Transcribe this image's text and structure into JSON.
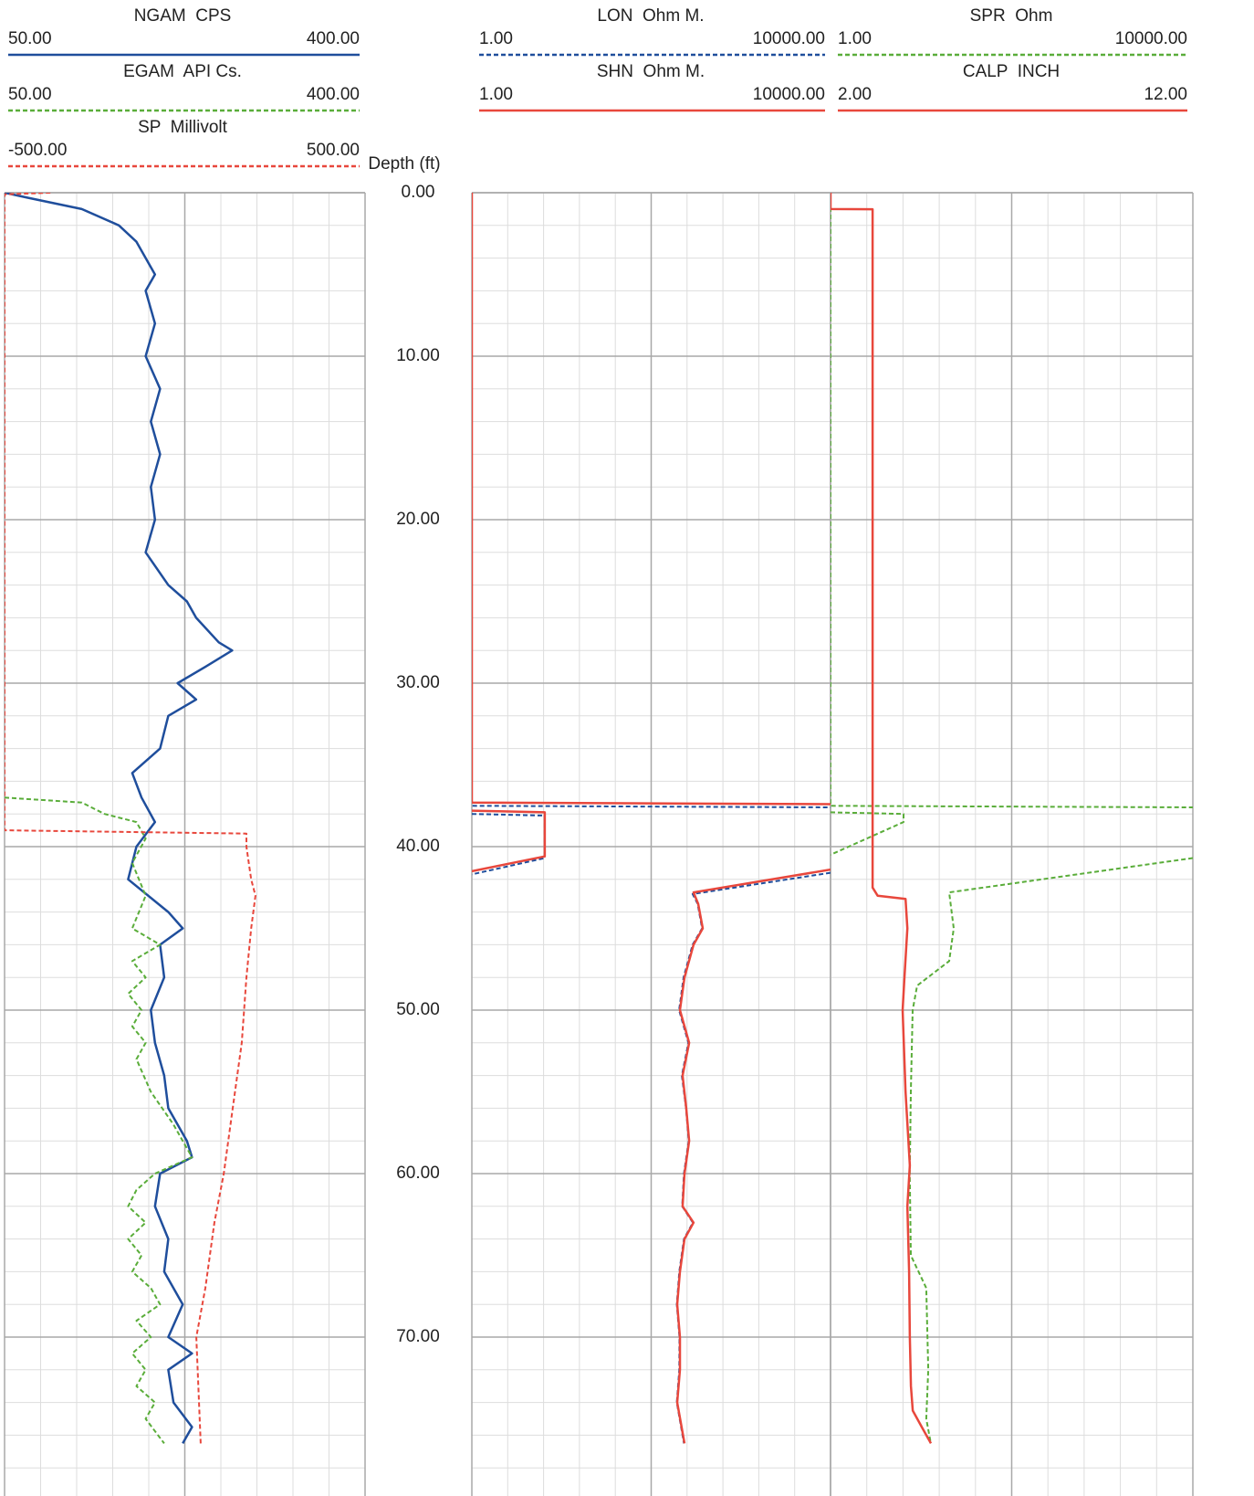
{
  "chart_data": {
    "type": "welllog",
    "ylabel": "Depth (ft)",
    "ylim": [
      0,
      80
    ],
    "yticks": [
      {
        "value": 0,
        "label": "0.00"
      },
      {
        "value": 10,
        "label": "10.00"
      },
      {
        "value": 20,
        "label": "20.00"
      },
      {
        "value": 30,
        "label": "30.00"
      },
      {
        "value": 40,
        "label": "40.00"
      },
      {
        "value": 50,
        "label": "50.00"
      },
      {
        "value": 60,
        "label": "60.00"
      },
      {
        "value": 70,
        "label": "70.00"
      }
    ],
    "tracks": [
      {
        "series": [
          {
            "name": "NGAM  CPS",
            "color": "#1f4e9c",
            "dash": false,
            "scale": "linear",
            "xlim": [
              {
                "value": 50,
                "label": "50.00"
              },
              {
                "value": 400,
                "label": "400.00"
              }
            ],
            "depth": [
              0,
              0.3,
              1,
              2,
              3,
              5,
              6,
              8,
              10,
              12,
              14,
              16,
              18,
              20,
              22,
              24,
              25,
              26,
              27.5,
              28,
              29,
              30,
              31,
              32,
              34,
              35.5,
              37,
              38.5,
              40,
              42,
              44,
              45,
              46,
              48,
              50,
              52,
              54,
              56,
              58,
              59,
              60,
              62,
              64,
              66,
              68,
              70,
              71,
              72,
              74,
              75.5,
              76.5
            ],
            "values": [
              50,
              72,
              125,
              161,
              178,
              196,
              187,
              196,
              187,
              201,
              192,
              201,
              192,
              196,
              187,
              209,
              227,
              236,
              258,
              271,
              245,
              218,
              236,
              209,
              201,
              174,
              183,
              196,
              178,
              170,
              209,
              223,
              201,
              205,
              192,
              196,
              205,
              209,
              227,
              232,
              201,
              196,
              209,
              205,
              223,
              209,
              232,
              209,
              214,
              232,
              223
            ]
          },
          {
            "name": "EGAM  API Cs.",
            "color": "#5aad3a",
            "dash": true,
            "scale": "linear",
            "xlim": [
              {
                "value": 50,
                "label": "50.00"
              },
              {
                "value": 400,
                "label": "400.00"
              }
            ],
            "depth": [
              37,
              37.3,
              38,
              38.5,
              39.5,
              41,
              43,
              45,
              46,
              47,
              48,
              49,
              50,
              51,
              52,
              53,
              55,
              57,
              58,
              59,
              60,
              61,
              62,
              63,
              64,
              65,
              66,
              67,
              68,
              69,
              70,
              71,
              72,
              73,
              74,
              75,
              76.5
            ],
            "values": [
              50,
              125,
              147,
              178,
              187,
              174,
              187,
              174,
              201,
              174,
              187,
              170,
              183,
              174,
              187,
              178,
              192,
              214,
              223,
              232,
              196,
              178,
              170,
              187,
              170,
              183,
              174,
              192,
              201,
              178,
              192,
              174,
              187,
              178,
              196,
              187,
              205
            ]
          },
          {
            "name": "SP  Millivolt",
            "color": "#e8473c",
            "dash": true,
            "scale": "linear",
            "xlim": [
              {
                "value": -500,
                "label": "-500.00"
              },
              {
                "value": 500,
                "label": "500.00"
              }
            ],
            "depth": [
              0,
              0.1,
              39,
              39.2,
              40,
              42,
              43,
              45,
              48,
              52,
              56,
              60,
              63,
              67,
              70,
              76.5
            ],
            "values": [
              -373,
              -500,
              -500,
              171,
              171,
              184,
              196,
              184,
              171,
              158,
              133,
              108,
              82,
              57,
              32,
              44
            ]
          }
        ]
      },
      {
        "series": [
          {
            "name": "LON  Ohm M.",
            "color": "#1f4e9c",
            "dash": true,
            "scale": "log",
            "xlim": [
              {
                "value": 1,
                "label": "1.00"
              },
              {
                "value": 10000,
                "label": "10000.00"
              }
            ],
            "depth": [
              0,
              37.5,
              37.6,
              37.7,
              38,
              38.1,
              40.7,
              41.7,
              41.8,
              41.6,
              42.9,
              43.5,
              45,
              46,
              48,
              50,
              52,
              54,
              56,
              58,
              60,
              62,
              63,
              64,
              66,
              68,
              70,
              72,
              74,
              76.5
            ],
            "values": [
              1,
              1,
              10000,
              null,
              1,
              6.5,
              6.5,
              1,
              null,
              10000,
              290,
              330,
              370,
              290,
              230,
              205,
              260,
              220,
              245,
              262,
              232,
              222,
              292,
              232,
              206,
              193,
              207,
              206,
              193,
              232
            ]
          },
          {
            "name": "SHN  Ohm M.",
            "color": "#e8473c",
            "dash": false,
            "scale": "log",
            "xlim": [
              {
                "value": 1,
                "label": "1.00"
              },
              {
                "value": 10000,
                "label": "10000.00"
              }
            ],
            "depth": [
              0,
              37.3,
              37.4,
              37.5,
              37.8,
              37.9,
              40.6,
              41.5,
              41.6,
              41.4,
              42.8,
              43.5,
              45,
              46,
              48,
              50,
              52,
              54,
              56,
              58,
              60,
              62,
              63,
              64,
              66,
              68,
              70,
              72,
              74,
              76.5
            ],
            "values": [
              1,
              1,
              10000,
              null,
              1,
              6.5,
              6.5,
              1,
              null,
              10000,
              297,
              334,
              376,
              297,
              235,
              209,
              265,
              224,
              246,
              265,
              235,
              224,
              297,
              235,
              209,
              195,
              209,
              209,
              195,
              235
            ]
          }
        ]
      },
      {
        "series": [
          {
            "name": "SPR  Ohm",
            "color": "#5aad3a",
            "dash": true,
            "scale": "log",
            "xlim": [
              {
                "value": 1,
                "label": "1.00"
              },
              {
                "value": 10000,
                "label": "10000.00"
              }
            ],
            "depth": [
              0,
              37.5,
              37.6,
              37.7,
              37.9,
              38,
              38.5,
              40.5,
              40.6,
              40.7,
              42.8,
              45,
              47,
              48.5,
              50,
              55,
              60,
              65,
              67,
              72,
              75,
              76.5
            ],
            "values": [
              1,
              1,
              10000,
              null,
              1,
              6.4,
              6.4,
              1,
              null,
              10000,
              20.4,
              22.9,
              20.4,
              9.05,
              8.06,
              7.7,
              7.5,
              7.7,
              11.4,
              12,
              11.4,
              12.8
            ]
          },
          {
            "name": "CALP  INCH",
            "color": "#e8473c",
            "dash": false,
            "scale": "linear",
            "xlim": [
              {
                "value": 2,
                "label": "2.00"
              },
              {
                "value": 12,
                "label": "12.00"
              }
            ],
            "depth": [
              0,
              1,
              1.01,
              42.5,
              43,
              43.2,
              45,
              48,
              50,
              55,
              59.5,
              62,
              66,
              70,
              73,
              74.5,
              75.5,
              76.5
            ],
            "values": [
              2,
              2,
              3.16,
              3.16,
              3.3,
              4.07,
              4.12,
              4.04,
              3.99,
              4.07,
              4.19,
              4.12,
              4.17,
              4.19,
              4.22,
              4.27,
              4.52,
              4.77
            ]
          }
        ]
      }
    ]
  }
}
